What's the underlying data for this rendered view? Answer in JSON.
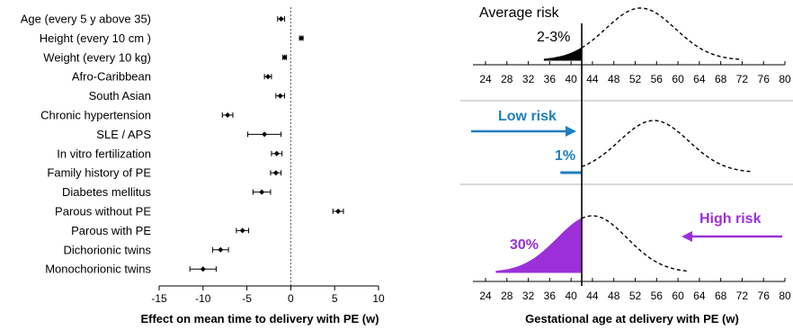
{
  "chart_data": [
    {
      "type": "forest",
      "xlabel": "Effect on mean time to delivery with PE (w)",
      "xlim": [
        -15,
        10
      ],
      "xticks": [
        -15,
        -10,
        -5,
        0,
        5,
        10
      ],
      "reference_line": 0,
      "rows": [
        {
          "label": "Age (every 5 y above 35)",
          "est": -1.1,
          "lo": -1.5,
          "hi": -0.7
        },
        {
          "label": "Height (every 10 cm )",
          "est": 1.2,
          "lo": 1.0,
          "hi": 1.4
        },
        {
          "label": "Weight (every 10 kg)",
          "est": -0.7,
          "lo": -0.9,
          "hi": -0.5
        },
        {
          "label": "Afro-Caribbean",
          "est": -2.6,
          "lo": -3.0,
          "hi": -2.2
        },
        {
          "label": "South Asian",
          "est": -1.2,
          "lo": -1.7,
          "hi": -0.7
        },
        {
          "label": "Chronic hypertension",
          "est": -7.2,
          "lo": -7.8,
          "hi": -6.6
        },
        {
          "label": "SLE / APS",
          "est": -3.0,
          "lo": -4.9,
          "hi": -1.1
        },
        {
          "label": "In vitro fertilization",
          "est": -1.6,
          "lo": -2.2,
          "hi": -1.0
        },
        {
          "label": "Family history of PE",
          "est": -1.7,
          "lo": -2.3,
          "hi": -1.1
        },
        {
          "label": "Diabetes mellitus",
          "est": -3.3,
          "lo": -4.3,
          "hi": -2.3
        },
        {
          "label": "Parous without PE",
          "est": 5.4,
          "lo": 4.8,
          "hi": 6.0
        },
        {
          "label": "Parous with PE",
          "est": -5.5,
          "lo": -6.2,
          "hi": -4.8
        },
        {
          "label": "Dichorionic twins",
          "est": -8.0,
          "lo": -8.9,
          "hi": -7.1
        },
        {
          "label": "Monochorionic twins",
          "est": -10.0,
          "lo": -11.5,
          "hi": -8.5
        }
      ]
    },
    {
      "type": "distribution",
      "xlabel": "Gestational age at delivery with PE (w)",
      "xlim": [
        24,
        80
      ],
      "xticks": [
        24,
        28,
        32,
        36,
        40,
        44,
        48,
        52,
        56,
        60,
        64,
        68,
        72,
        76,
        80
      ],
      "xtick_labels": [
        "24",
        "28",
        "32",
        "36",
        "40",
        "44",
        "48",
        "52",
        "56",
        "60",
        "64",
        "68",
        "72",
        "76",
        "80"
      ],
      "cutoff": 42,
      "panels": [
        {
          "name": "Average risk",
          "title": "Average risk",
          "mean": 53,
          "sd": 6.5,
          "start": 35,
          "end": 72,
          "fill_color": "#000000",
          "fill_label": "2-3%",
          "label_color": "#000000",
          "show_tick_labels": true
        },
        {
          "name": "Low risk",
          "arrow_label": "Low risk",
          "arrow_direction": "right",
          "arrow_color": "#1f7fc0",
          "mean": 55.5,
          "sd": 6.5,
          "start": 38,
          "end": 74,
          "fill_color": "#1f7fc0",
          "fill_label": "1%",
          "label_color": "#1f7fc0",
          "show_tick_labels": false
        },
        {
          "name": "High risk",
          "arrow_label": "High risk",
          "arrow_direction": "left",
          "arrow_color": "#9b30d9",
          "mean": 44,
          "sd": 6.5,
          "start": 26,
          "end": 62,
          "fill_color": "#9b30d9",
          "fill_label": "30%",
          "label_color": "#9b30d9",
          "show_tick_labels": true
        }
      ]
    }
  ]
}
